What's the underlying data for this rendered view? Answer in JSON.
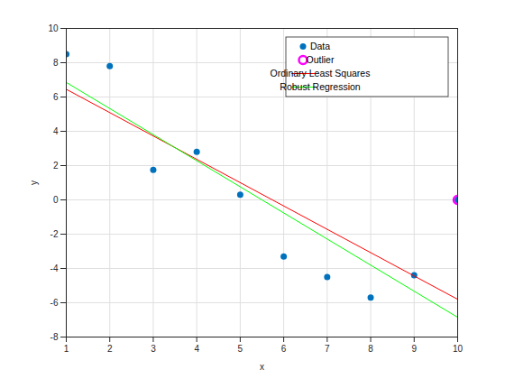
{
  "chart_data": {
    "type": "scatter",
    "x_label": "x",
    "y_label": "y",
    "xlim": [
      1,
      10
    ],
    "xticks": [
      1,
      2,
      3,
      4,
      5,
      6,
      7,
      8,
      9,
      10
    ],
    "ylim": [
      -8,
      10
    ],
    "yticks": [
      -8,
      -6,
      -4,
      -2,
      0,
      2,
      4,
      6,
      8,
      10
    ],
    "grid": true,
    "legend": "northeast",
    "series": [
      {
        "name": "Data",
        "type": "scatter",
        "marker": "filled_circle",
        "color": "#0072bd",
        "x": [
          1,
          2,
          3,
          4,
          5,
          6,
          7,
          8,
          9,
          10
        ],
        "values": [
          8.5,
          7.8,
          1.75,
          2.8,
          0.3,
          -3.3,
          -4.5,
          -5.7,
          -4.4,
          0
        ]
      },
      {
        "name": "Outlier",
        "type": "scatter",
        "marker": "open_circle",
        "color": "#ff00ff",
        "x": [
          10
        ],
        "values": [
          0
        ]
      },
      {
        "name": "Ordinary Least Squares",
        "type": "line",
        "line_style": "solid",
        "color": "#ff0000",
        "x": [
          1,
          10
        ],
        "values": [
          6.45,
          -5.8
        ]
      },
      {
        "name": "Robust Regression",
        "type": "line",
        "line_style": "solid",
        "color": "#00ff00",
        "x": [
          1,
          10
        ],
        "values": [
          6.85,
          -6.85
        ]
      }
    ]
  }
}
